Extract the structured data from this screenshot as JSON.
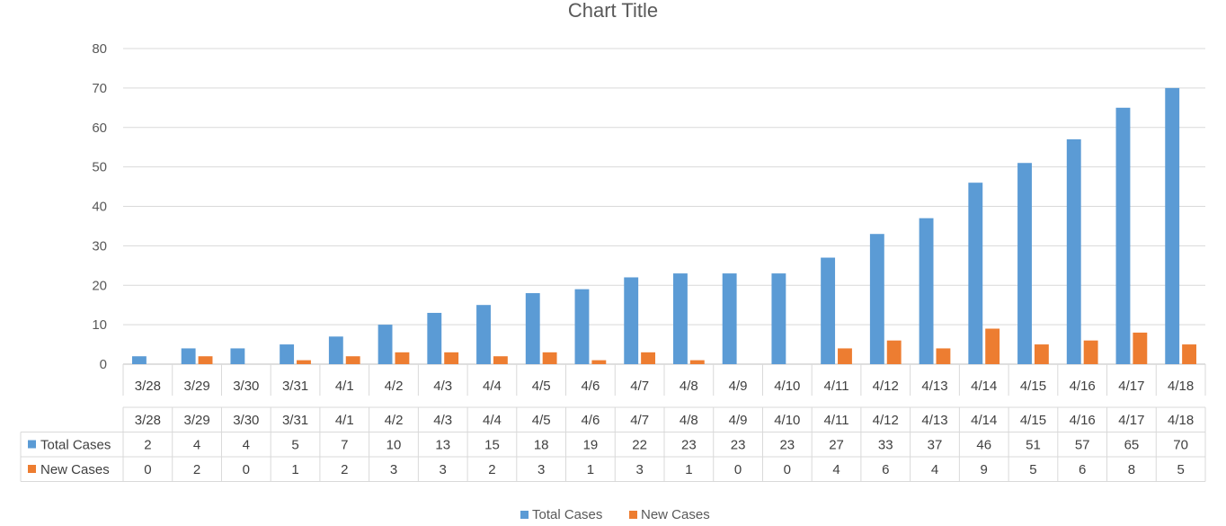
{
  "chart_data": {
    "type": "bar",
    "title": "Chart Title",
    "categories": [
      "3/28",
      "3/29",
      "3/30",
      "3/31",
      "4/1",
      "4/2",
      "4/3",
      "4/4",
      "4/5",
      "4/6",
      "4/7",
      "4/8",
      "4/9",
      "4/10",
      "4/11",
      "4/12",
      "4/13",
      "4/14",
      "4/15",
      "4/16",
      "4/17",
      "4/18"
    ],
    "series": [
      {
        "name": "Total Cases",
        "color": "#5B9BD5",
        "values": [
          2,
          4,
          4,
          5,
          7,
          10,
          13,
          15,
          18,
          19,
          22,
          23,
          23,
          23,
          27,
          33,
          37,
          46,
          51,
          57,
          65,
          70
        ]
      },
      {
        "name": "New Cases",
        "color": "#ED7D31",
        "values": [
          0,
          2,
          0,
          1,
          2,
          3,
          3,
          2,
          3,
          1,
          3,
          1,
          0,
          0,
          4,
          6,
          4,
          9,
          5,
          6,
          8,
          5
        ]
      }
    ],
    "ylim": [
      0,
      80
    ],
    "yticks": [
      0,
      10,
      20,
      30,
      40,
      50,
      60,
      70,
      80
    ],
    "grid": true,
    "data_table": true,
    "legend_position": "bottom"
  }
}
